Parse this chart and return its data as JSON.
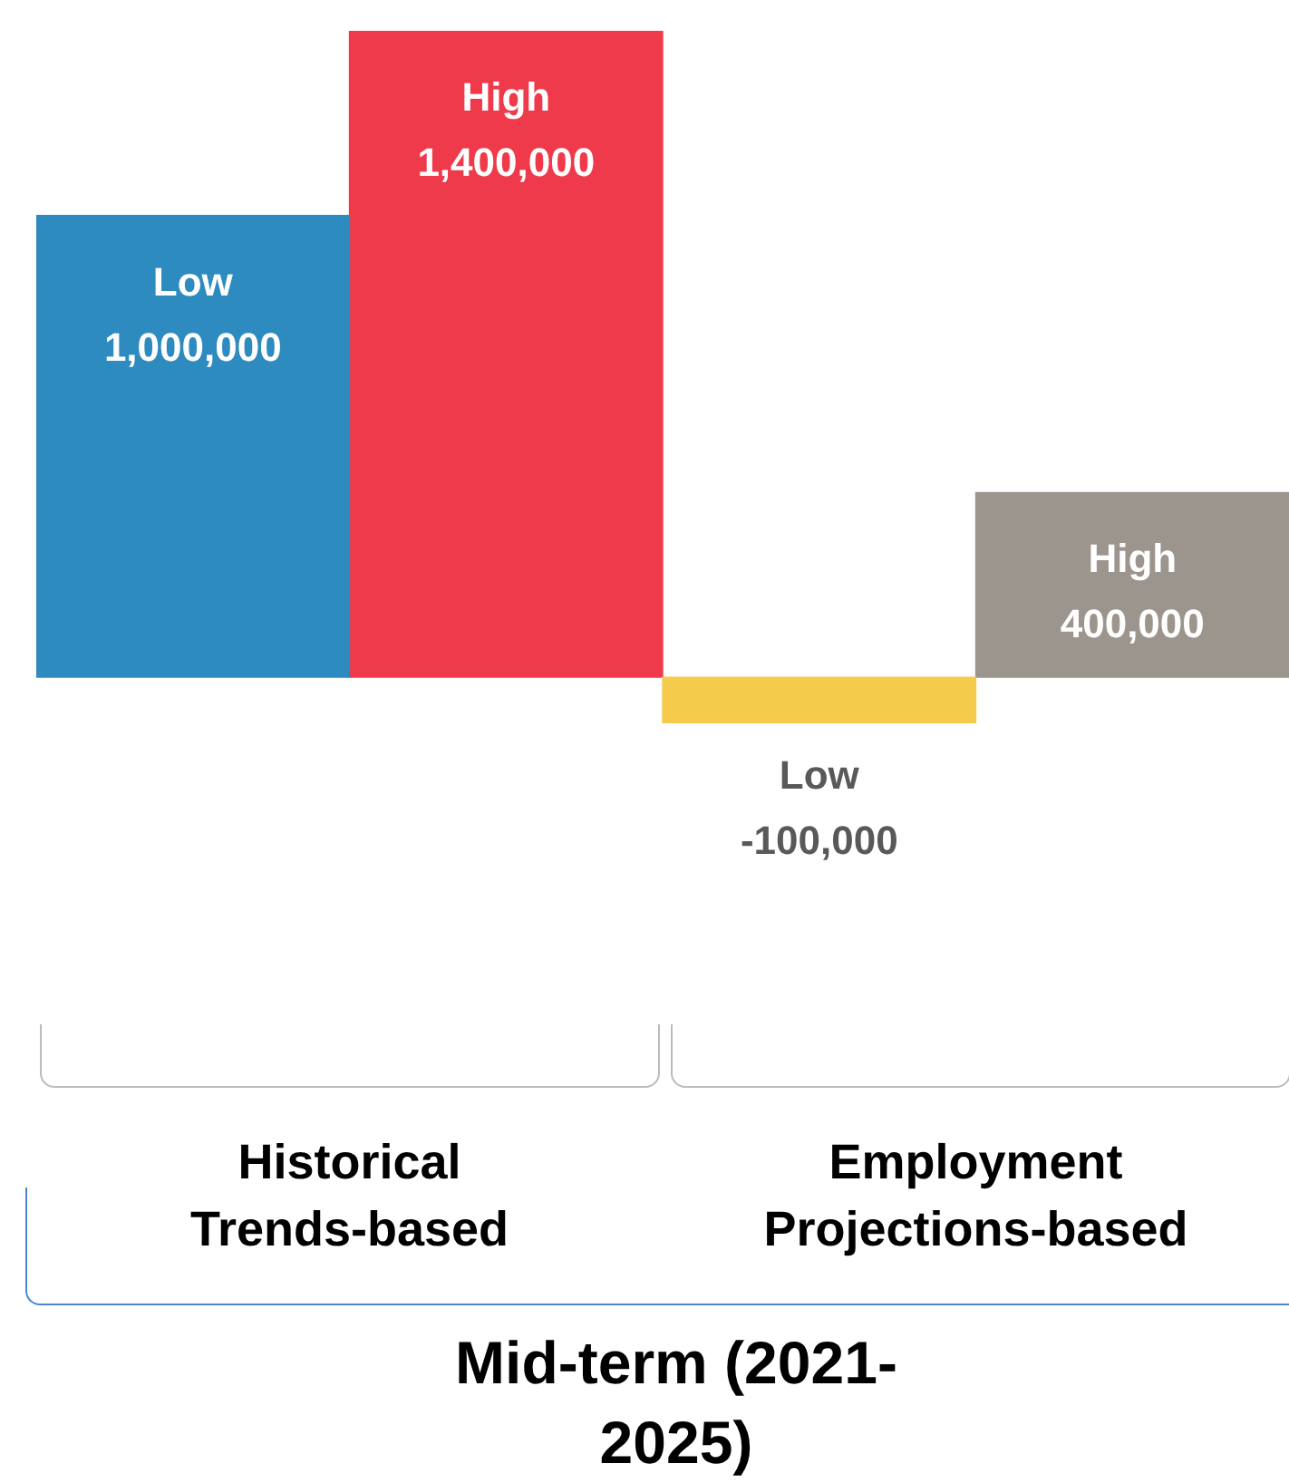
{
  "chart_data": {
    "type": "bar",
    "categories": [
      "Historical Trends-based",
      "Employment Projections-based"
    ],
    "series": [
      {
        "name": "Low",
        "colors": [
          "#2e8bc0",
          "#f5cb4c"
        ],
        "values": [
          1000000,
          -100000
        ],
        "value_labels": [
          "1,000,000",
          "-100,000"
        ]
      },
      {
        "name": "High",
        "colors": [
          "#ee3a4a",
          "#9b958d"
        ],
        "values": [
          1400000,
          400000
        ],
        "value_labels": [
          "1,400,000",
          "400,000"
        ]
      }
    ],
    "xlabel": "Mid-term (2021-2025)"
  }
}
